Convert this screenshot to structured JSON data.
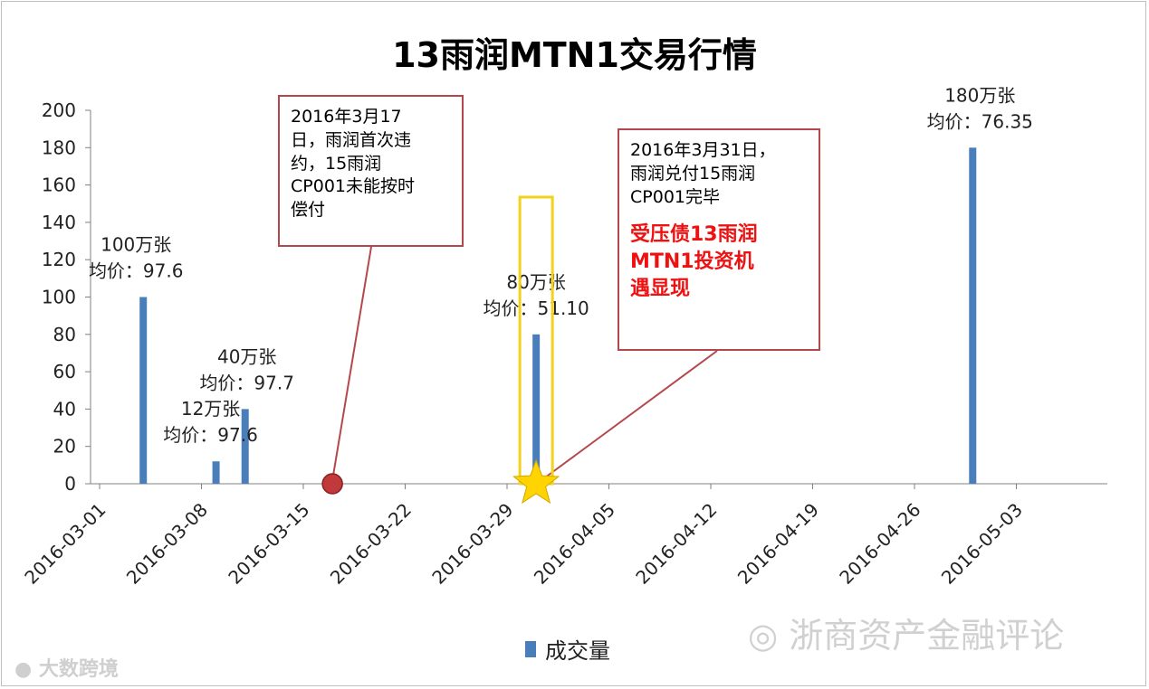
{
  "chart_data": {
    "type": "bar",
    "title": "13雨润MTN1交易行情",
    "y_range": [
      0,
      200
    ],
    "y_ticks": [
      "0",
      "20",
      "40",
      "60",
      "80",
      "100",
      "120",
      "140",
      "160",
      "180",
      "200"
    ],
    "x_ticks": [
      "2016-03-01",
      "2016-03-08",
      "2016-03-15",
      "2016-03-22",
      "2016-03-29",
      "2016-04-05",
      "2016-04-12",
      "2016-04-19",
      "2016-04-26",
      "2016-05-03"
    ],
    "series": [
      {
        "name": "成交量",
        "points": [
          {
            "date": "2016-03-04",
            "value": 100,
            "label_volume": "100万张",
            "label_price": "均价：97.6"
          },
          {
            "date": "2016-03-09",
            "value": 12,
            "label_volume": "12万张",
            "label_price": "均价：97.6"
          },
          {
            "date": "2016-03-11",
            "value": 40,
            "label_volume": "40万张",
            "label_price": "均价：97.7"
          },
          {
            "date": "2016-03-31",
            "value": 80,
            "label_volume": "80万张",
            "label_price": "均价：51.10"
          },
          {
            "date": "2016-04-30",
            "value": 180,
            "label_volume": "180万张",
            "label_price": "均价：76.35"
          }
        ]
      }
    ],
    "legend": {
      "label": "成交量",
      "placement": "bottom-center"
    },
    "grid": false,
    "colors": {
      "bar": "#4a7ebb",
      "callout_border": "#b5474c",
      "highlight_box": "#f2d21b",
      "star": "#ffd400",
      "event_marker": "#c0393b",
      "emphasis_text": "#ee1111"
    },
    "annotations": [
      {
        "date": "2016-03-17",
        "marker": "circle",
        "lines": [
          "2016年3月17",
          "日，雨润首次违",
          "约，15雨润",
          "CP001未能按时",
          "偿付"
        ]
      },
      {
        "date": "2016-03-31",
        "marker": "star",
        "lines": [
          "2016年3月31日，",
          "雨润兑付15雨润",
          "CP001完毕"
        ],
        "highlight_lines": [
          "受压债13雨润",
          "MTN1投资机",
          "遇显现"
        ]
      }
    ]
  },
  "watermarks": {
    "right": "浙商资产金融评论",
    "left": "大数跨境"
  }
}
